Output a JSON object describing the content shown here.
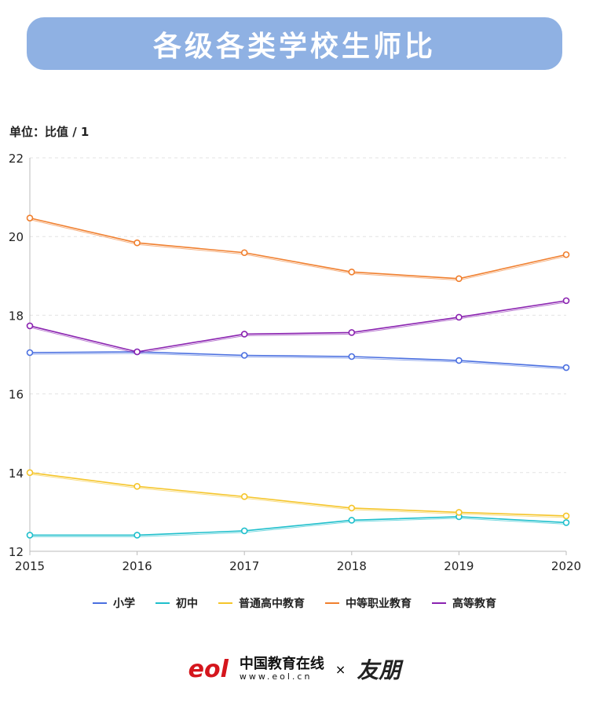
{
  "title": "各级各类学校生师比",
  "unit_label": "单位：比值 / 1",
  "footer": {
    "logo_text": "eol",
    "site_name": "中国教育在线",
    "url": "www.eol.cn",
    "times": "×",
    "partner": "友朋"
  },
  "chart_data": {
    "type": "line",
    "title": "各级各类学校生师比",
    "ylabel": "单位：比值 / 1",
    "xlabel": "",
    "x": [
      "2015",
      "2016",
      "2017",
      "2018",
      "2019",
      "2020"
    ],
    "ylim": [
      12,
      22
    ],
    "yticks": [
      "12",
      "14",
      "16",
      "18",
      "20",
      "22"
    ],
    "grid": true,
    "legend_position": "bottom",
    "series": [
      {
        "name": "小学",
        "color": "#4a6fe0",
        "values": [
          17.05,
          17.07,
          16.98,
          16.95,
          16.85,
          16.67
        ]
      },
      {
        "name": "初中",
        "color": "#1fbfcc",
        "values": [
          12.41,
          12.41,
          12.52,
          12.79,
          12.88,
          12.73
        ]
      },
      {
        "name": "普通高中教育",
        "color": "#f5c52a",
        "values": [
          14.0,
          13.65,
          13.39,
          13.1,
          12.99,
          12.9
        ]
      },
      {
        "name": "中等职业教育",
        "color": "#f07f2e",
        "values": [
          20.47,
          19.84,
          19.59,
          19.1,
          18.93,
          19.54
        ]
      },
      {
        "name": "高等教育",
        "color": "#8a22b0",
        "values": [
          17.73,
          17.07,
          17.52,
          17.56,
          17.95,
          18.37
        ]
      }
    ]
  }
}
